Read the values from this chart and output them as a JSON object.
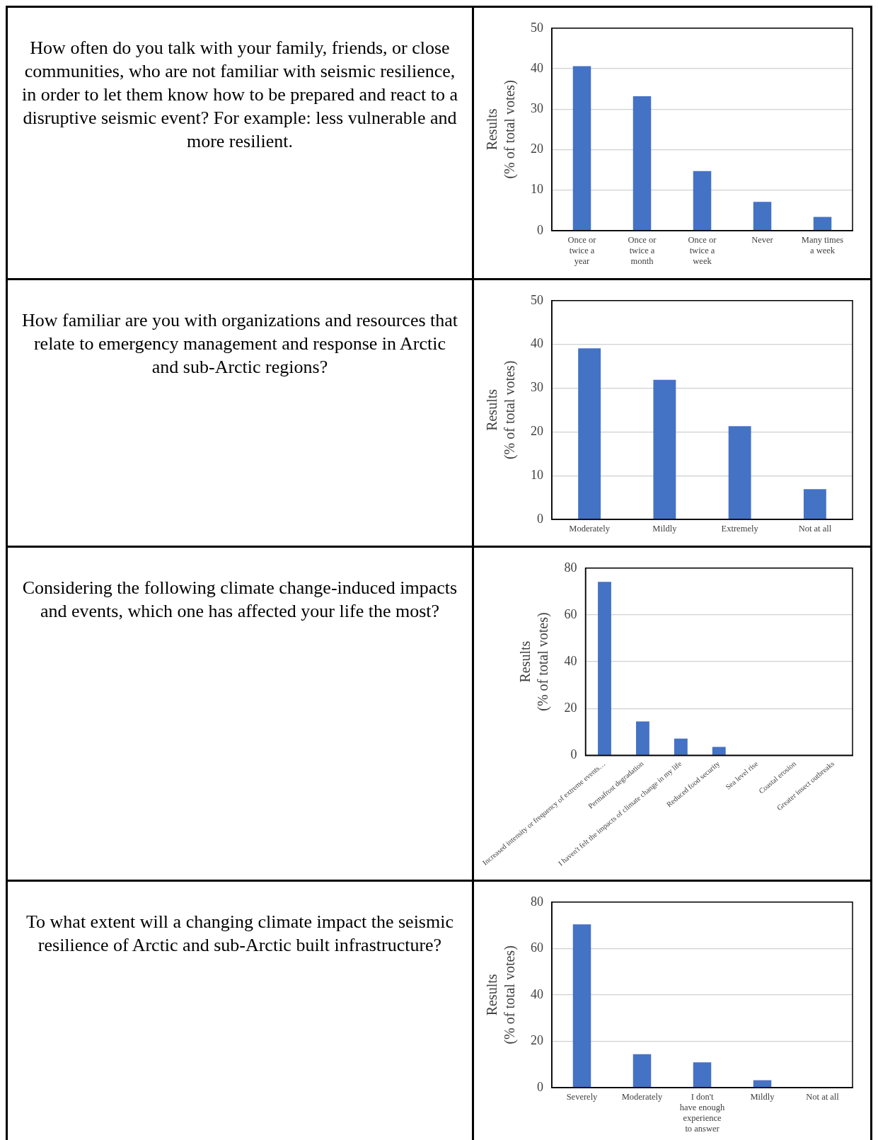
{
  "chart_data": [
    {
      "type": "bar",
      "title": "How often do you talk with your family, friends, or close communities, who are not familiar with seismic resilience, in order to let them know how to be prepared and react to a disruptive seismic event? For example: less vulnerable and more resilient.",
      "ylabel": "Results\n(% of total votes)",
      "categories": [
        "Once or twice a year",
        "Once or twice a month",
        "Once or twice a week",
        "Never",
        "Many times a week"
      ],
      "values": [
        40.6,
        33.2,
        14.7,
        7.1,
        3.4
      ],
      "color": "#4472c4",
      "ylim": [
        0,
        50
      ],
      "yticks": [
        0,
        10,
        20,
        30,
        40,
        50
      ],
      "grid": "y"
    },
    {
      "type": "bar",
      "title": "How familiar are you with organizations and resources that relate to emergency management and response in Arctic and sub-Arctic regions?",
      "ylabel": "Results\n(% of total votes)",
      "categories": [
        "Moderately",
        "Mildly",
        "Extremely",
        "Not at all"
      ],
      "values": [
        39.1,
        31.9,
        21.3,
        6.9
      ],
      "color": "#4472c4",
      "ylim": [
        0,
        50
      ],
      "yticks": [
        0,
        10,
        20,
        30,
        40,
        50
      ],
      "grid": "y"
    },
    {
      "type": "bar",
      "title": "Considering the following climate change-induced impacts and events, which one has affected your life the most?",
      "ylabel": "Results\n(% of total votes)",
      "categories": [
        "Increased intensity or frequency of extreme events…",
        "Permafrost degradation",
        "I haven't felt the impacts of climate change in my life",
        "Reduced food security",
        "Sea level rise",
        "Coastal erosion",
        "Greater insect outbreaks"
      ],
      "values": [
        74.1,
        14.5,
        7.1,
        3.6,
        0,
        0,
        0
      ],
      "color": "#4472c4",
      "ylim": [
        0,
        80
      ],
      "yticks": [
        0,
        20,
        40,
        60,
        80
      ],
      "grid": "y"
    },
    {
      "type": "bar",
      "title": "To what extent will a changing climate impact the seismic resilience of Arctic and sub-Arctic built infrastructure?",
      "ylabel": "Results\n(% of total votes)",
      "categories": [
        "Severely",
        "Moderately",
        "I don't have enough experience to answer",
        "Mildly",
        "Not at all"
      ],
      "values": [
        70.4,
        14.4,
        10.9,
        3.2,
        0
      ],
      "color": "#4472c4",
      "ylim": [
        0,
        80
      ],
      "yticks": [
        0,
        20,
        40,
        60,
        80
      ],
      "grid": "y"
    }
  ]
}
